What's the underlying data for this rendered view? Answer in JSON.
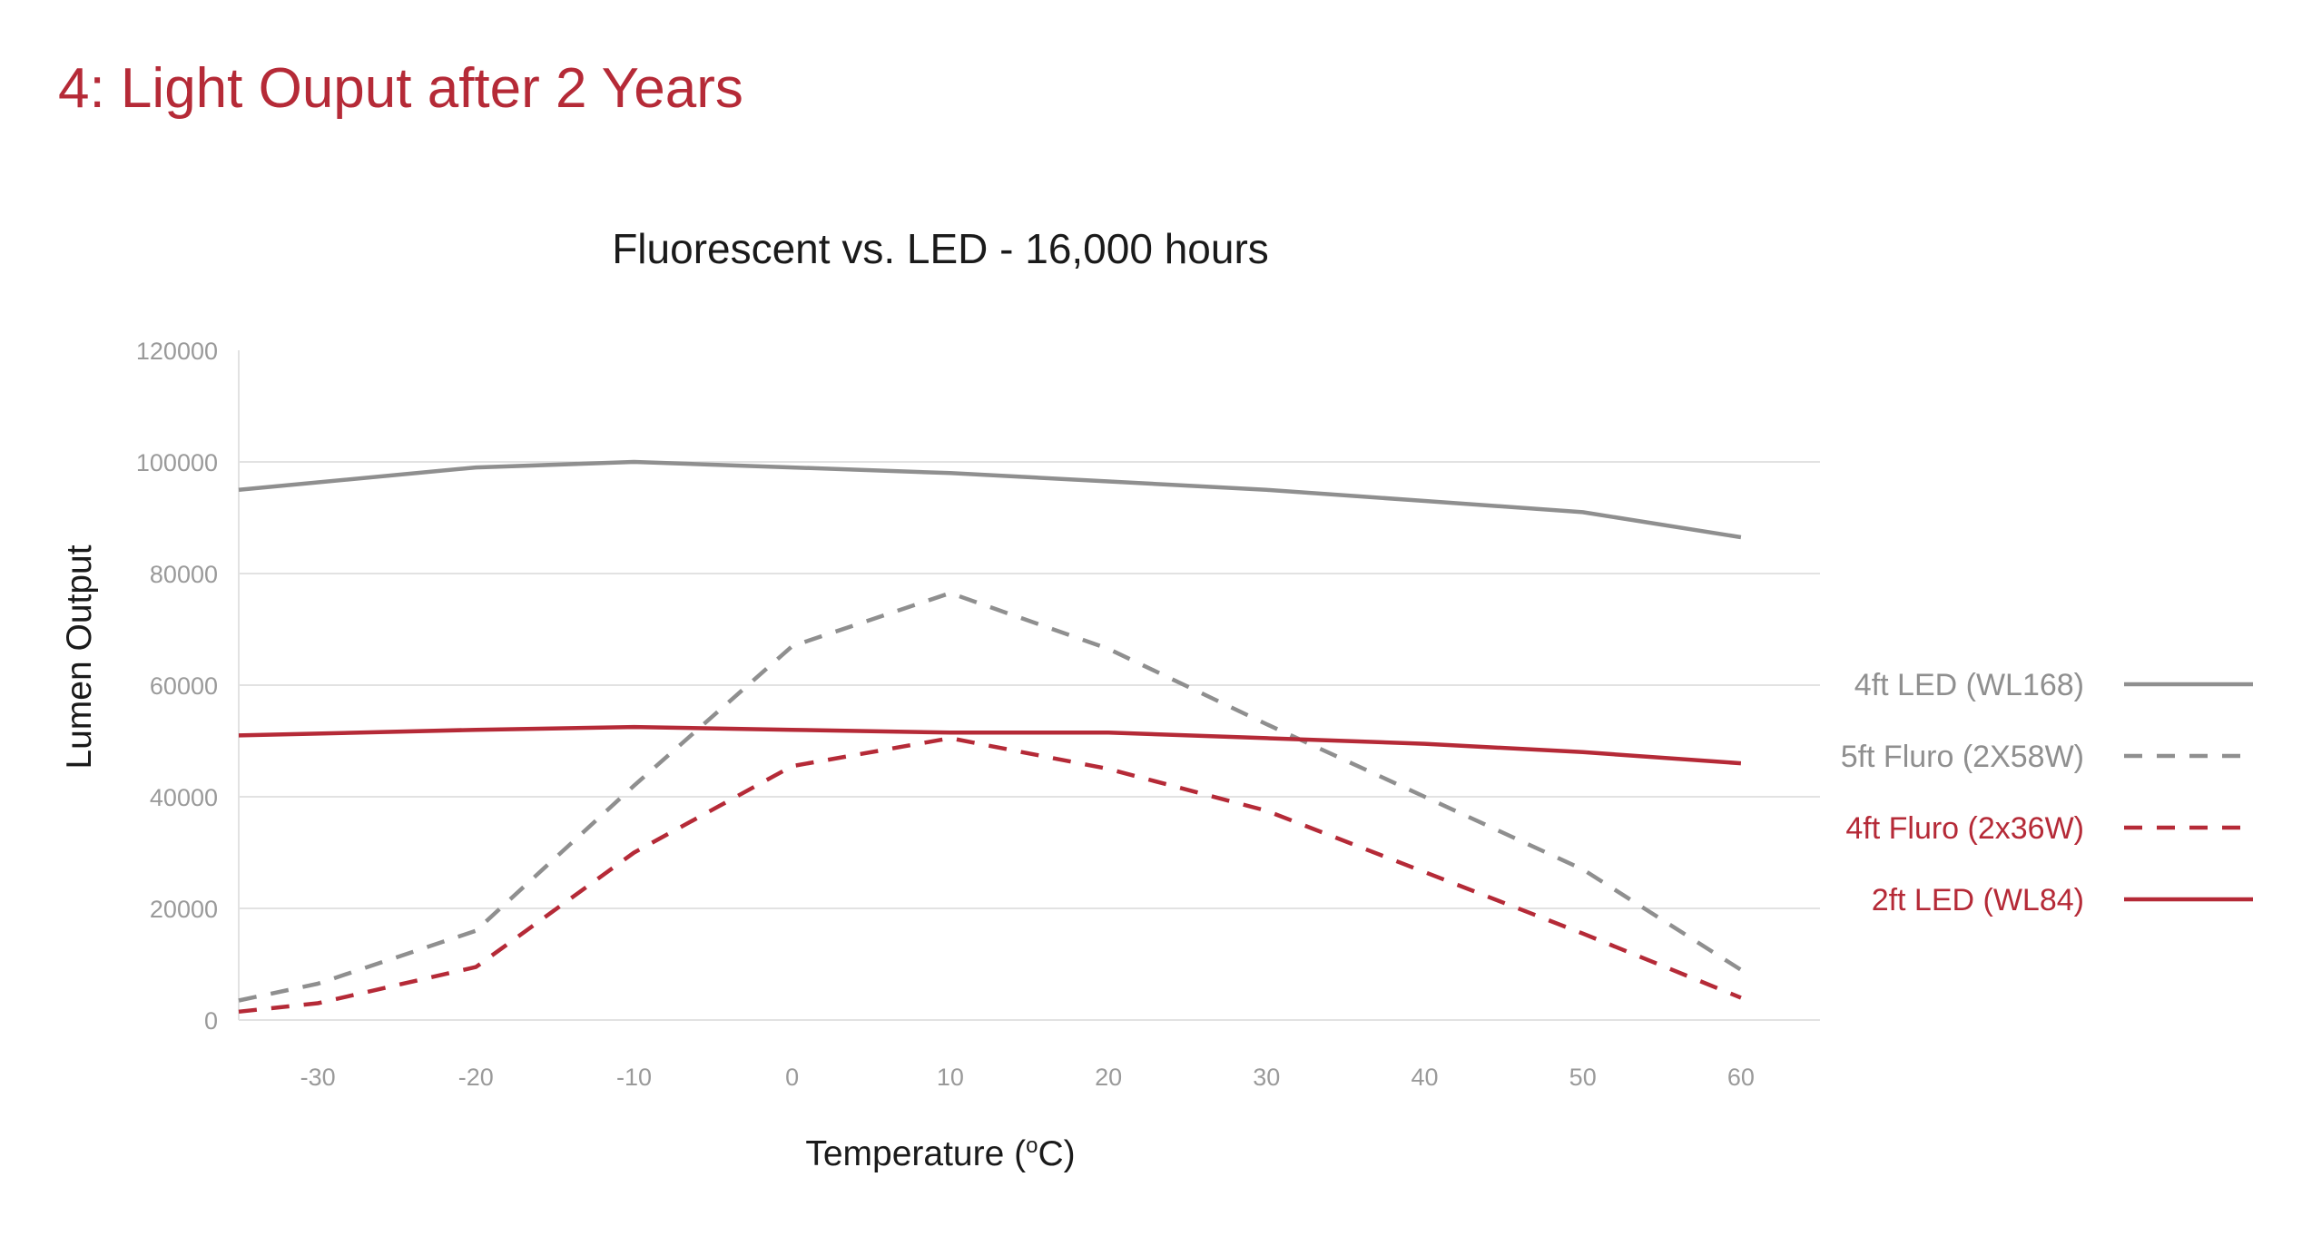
{
  "page": {
    "heading": "4: Light Ouput after 2 Years"
  },
  "colors": {
    "grey": "#8f8f8f",
    "red": "#b52a37",
    "grid": "#e2e2e2",
    "tick": "#9a9a9a"
  },
  "chart_data": {
    "type": "line",
    "title": "Fluorescent vs. LED - 16,000 hours",
    "xlabel_main": "Temperature (",
    "xlabel_sup": "o",
    "xlabel_end": "C)",
    "ylabel": "Lumen Output",
    "xlim": [
      -35,
      65
    ],
    "ylim": [
      0,
      120000
    ],
    "x_ticks": [
      -30,
      -20,
      -10,
      0,
      10,
      20,
      30,
      40,
      50,
      60
    ],
    "y_ticks": [
      0,
      20000,
      40000,
      60000,
      80000,
      100000,
      120000
    ],
    "grid": true,
    "legend_position": "right",
    "series": [
      {
        "name": "4ft LED (WL168)",
        "color": "#8f8f8f",
        "dash": "solid",
        "x": [
          -35,
          -20,
          -10,
          0,
          10,
          20,
          30,
          40,
          50,
          60
        ],
        "y": [
          95000,
          99000,
          100000,
          99000,
          98000,
          96500,
          95000,
          93000,
          91000,
          86500
        ]
      },
      {
        "name": "5ft Fluro (2X58W)",
        "color": "#8f8f8f",
        "dash": "dashed",
        "x": [
          -35,
          -30,
          -20,
          -10,
          0,
          10,
          20,
          30,
          40,
          50,
          60
        ],
        "y": [
          3500,
          6500,
          16000,
          42000,
          67000,
          76500,
          66500,
          53000,
          40000,
          27000,
          9000
        ]
      },
      {
        "name": "4ft Fluro (2x36W)",
        "color": "#b52a37",
        "dash": "dashed",
        "x": [
          -35,
          -30,
          -20,
          -10,
          0,
          10,
          20,
          30,
          40,
          50,
          60
        ],
        "y": [
          1500,
          3000,
          9500,
          30000,
          45500,
          50500,
          45000,
          37500,
          26500,
          15500,
          4000
        ]
      },
      {
        "name": "2ft LED (WL84)",
        "color": "#b52a37",
        "dash": "solid",
        "x": [
          -35,
          -20,
          -10,
          0,
          10,
          20,
          30,
          40,
          50,
          60
        ],
        "y": [
          51000,
          52000,
          52500,
          52000,
          51500,
          51500,
          50500,
          49500,
          48000,
          46000
        ]
      }
    ]
  }
}
